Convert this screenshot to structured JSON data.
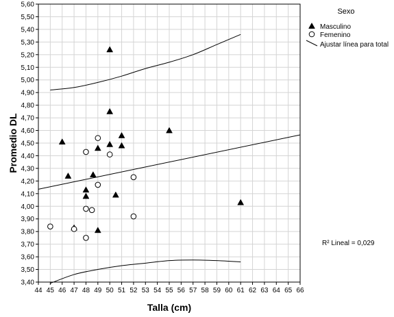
{
  "chart_data": {
    "type": "scatter",
    "xlabel": "Talla (cm)",
    "ylabel": "Promedio DL",
    "xlim": [
      44,
      66
    ],
    "ylim": [
      3.4,
      5.6
    ],
    "xticks": [
      "44",
      "45",
      "46",
      "47",
      "48",
      "49",
      "50",
      "51",
      "52",
      "53",
      "54",
      "55",
      "56",
      "57",
      "58",
      "59",
      "60",
      "61",
      "62",
      "63",
      "64",
      "65",
      "66"
    ],
    "yticks": [
      "3,40",
      "3,50",
      "3,60",
      "3,70",
      "3,80",
      "3,90",
      "4,00",
      "4,10",
      "4,20",
      "4,30",
      "4,40",
      "4,50",
      "4,60",
      "4,70",
      "4,80",
      "4,90",
      "5,00",
      "5,10",
      "5,20",
      "5,30",
      "5,40",
      "5,50",
      "5,60"
    ],
    "grid": true,
    "legend": {
      "title": "Sexo",
      "position": "top-right",
      "items": [
        {
          "label": "Masculino",
          "marker": "triangle"
        },
        {
          "label": "Femenino",
          "marker": "circle"
        },
        {
          "label": "Ajustar línea para total",
          "marker": "line"
        }
      ]
    },
    "series": [
      {
        "name": "Masculino",
        "marker": "triangle",
        "x": [
          50,
          46,
          50,
          55,
          51,
          51,
          49,
          50,
          48.6,
          46.5,
          48,
          48,
          50.5,
          47,
          49,
          61
        ],
        "y": [
          5.24,
          4.51,
          4.75,
          4.6,
          4.56,
          4.48,
          4.46,
          4.49,
          4.25,
          4.24,
          4.13,
          4.08,
          4.09,
          3.83,
          3.81,
          4.03
        ]
      },
      {
        "name": "Femenino",
        "marker": "circle",
        "x": [
          49,
          48,
          50,
          49,
          52,
          48,
          48.5,
          52,
          45,
          47,
          48
        ],
        "y": [
          4.54,
          4.43,
          4.41,
          4.17,
          4.23,
          3.98,
          3.97,
          3.92,
          3.84,
          3.82,
          3.75
        ]
      }
    ],
    "fit_line": {
      "label": "Ajustar línea para total",
      "x": [
        44,
        66
      ],
      "y": [
        4.135,
        4.565
      ]
    },
    "confidence_band": {
      "upper": {
        "x": [
          45,
          47,
          49,
          51,
          53,
          55,
          57,
          59,
          61
        ],
        "y": [
          4.92,
          4.94,
          4.98,
          5.03,
          5.09,
          5.14,
          5.2,
          5.28,
          5.36
        ]
      },
      "lower": {
        "x": [
          45,
          47,
          49,
          51,
          53,
          55,
          57,
          59,
          61
        ],
        "y": [
          3.39,
          3.46,
          3.5,
          3.53,
          3.55,
          3.57,
          3.575,
          3.57,
          3.56
        ]
      }
    },
    "annotation": "R² Lineal = 0,029"
  }
}
